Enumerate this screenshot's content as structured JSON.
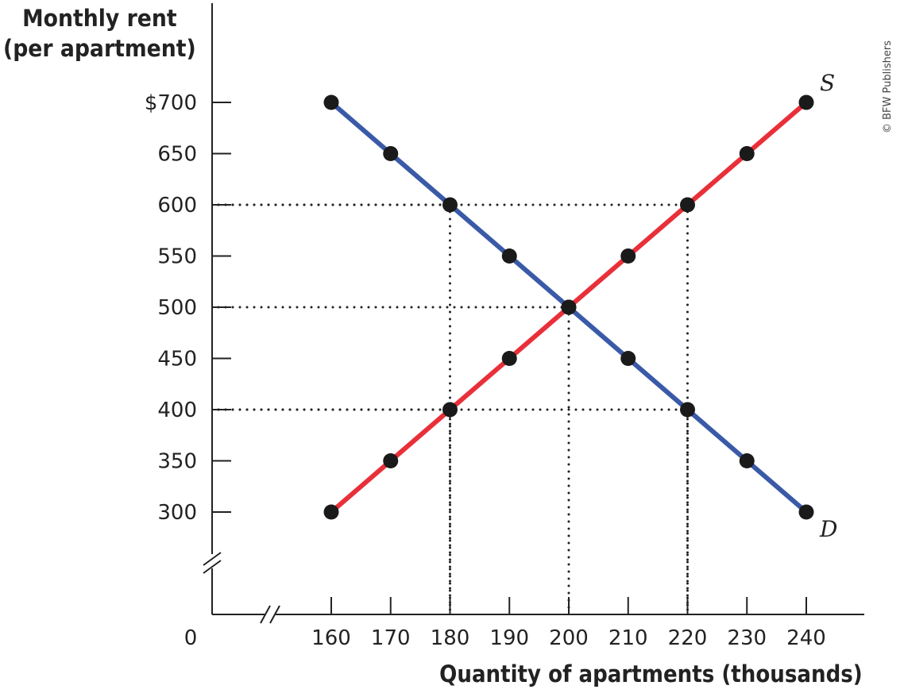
{
  "chart_data": {
    "type": "line",
    "ylabel_lines": [
      "Monthly rent",
      "(per apartment)"
    ],
    "xlabel": "Quantity of apartments (thousands)",
    "x_ticks": [
      "160",
      "170",
      "180",
      "190",
      "200",
      "210",
      "220",
      "230",
      "240"
    ],
    "y_ticks": [
      "$700",
      "650",
      "600",
      "550",
      "500",
      "450",
      "400",
      "350",
      "300"
    ],
    "origin_label": "0",
    "xlim": [
      160,
      240
    ],
    "ylim": [
      300,
      700
    ],
    "axis_breaks": true,
    "series": [
      {
        "name": "D",
        "color": "#3a5aa8",
        "x": [
          160,
          170,
          180,
          190,
          200,
          210,
          220,
          230,
          240
        ],
        "y": [
          700,
          650,
          600,
          550,
          500,
          450,
          400,
          350,
          300
        ]
      },
      {
        "name": "S",
        "color": "#e8303a",
        "x": [
          160,
          170,
          180,
          190,
          200,
          210,
          220,
          230,
          240
        ],
        "y": [
          300,
          350,
          400,
          450,
          500,
          550,
          600,
          650,
          700
        ]
      }
    ],
    "reference_lines": [
      {
        "x": 220,
        "y": 600
      },
      {
        "x": 200,
        "y": 500
      },
      {
        "x": 220,
        "y": 400
      },
      {
        "x": 180,
        "y": 400
      },
      {
        "x": 180,
        "y": 600
      }
    ],
    "credit": "© BFW Publishers"
  }
}
